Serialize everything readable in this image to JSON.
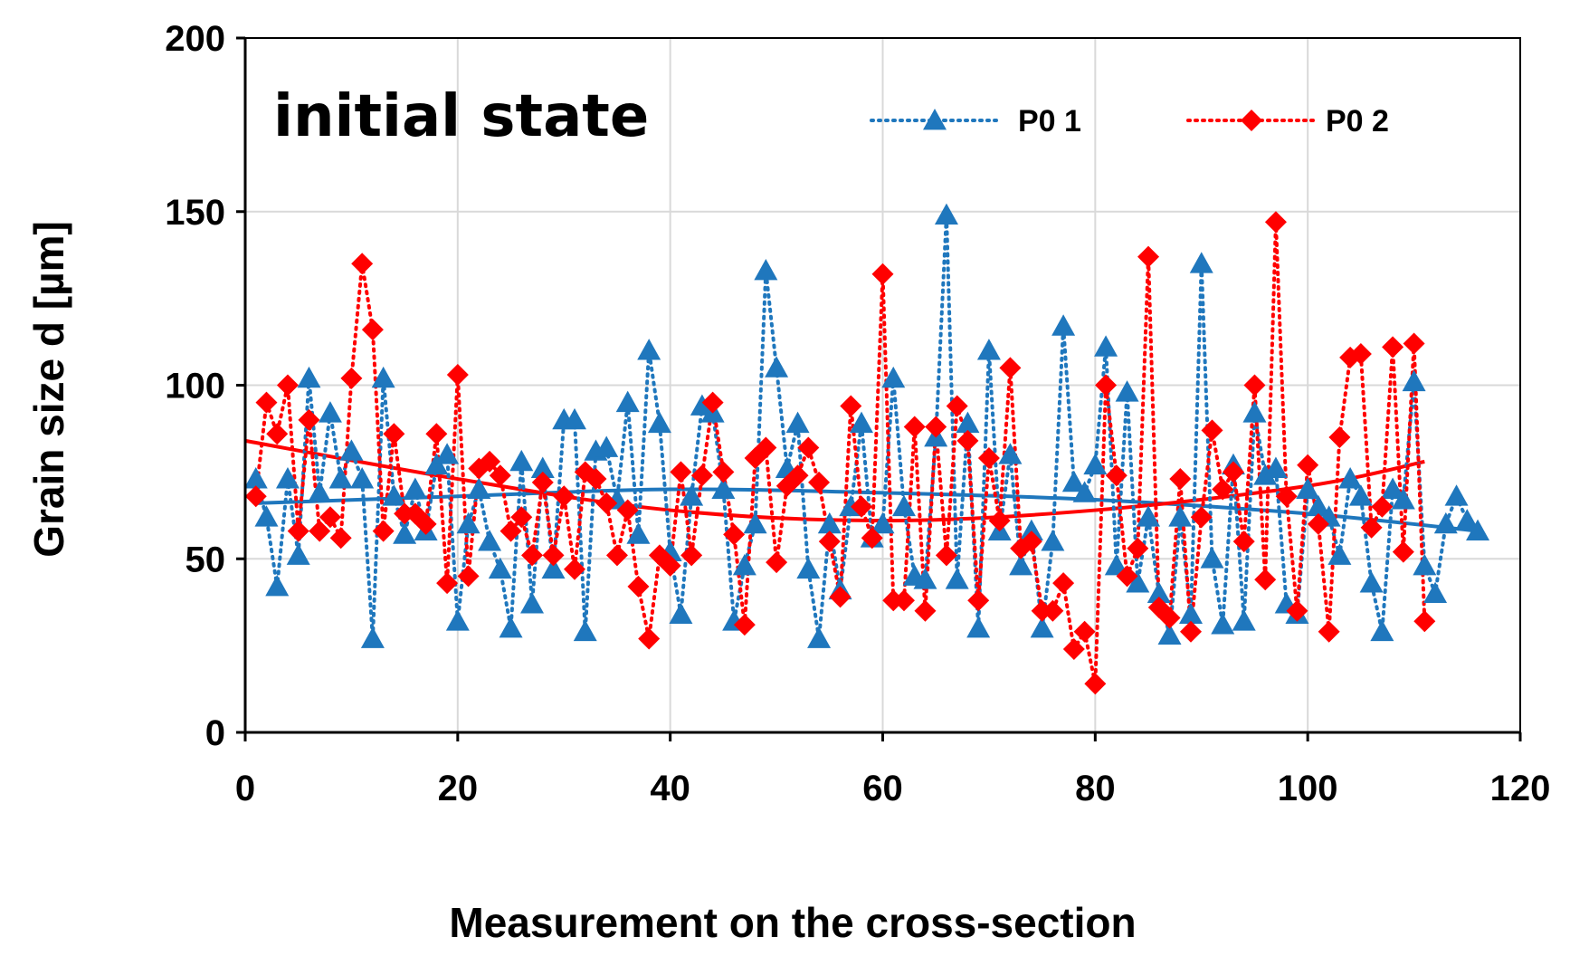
{
  "chart_data": {
    "type": "line",
    "title": "",
    "annotation": "initial state",
    "xlabel": "Measurement on the cross-section",
    "ylabel": "Grain  size d [µm]",
    "xlim": [
      0,
      120
    ],
    "ylim": [
      0,
      200
    ],
    "xticks": [
      0,
      20,
      40,
      60,
      80,
      100,
      120
    ],
    "yticks": [
      0,
      50,
      100,
      150,
      200
    ],
    "grid": true,
    "legend_position": "top-right",
    "series": [
      {
        "name": "P0 1",
        "marker": "triangle",
        "line_style": "dotted",
        "color": "#1f77bd",
        "x": [
          1,
          2,
          3,
          4,
          5,
          6,
          7,
          8,
          9,
          10,
          11,
          12,
          13,
          14,
          15,
          16,
          17,
          18,
          19,
          20,
          21,
          22,
          23,
          24,
          25,
          26,
          27,
          28,
          29,
          30,
          31,
          32,
          33,
          34,
          35,
          36,
          37,
          38,
          39,
          40,
          41,
          42,
          43,
          44,
          45,
          46,
          47,
          48,
          49,
          50,
          51,
          52,
          53,
          54,
          55,
          56,
          57,
          58,
          59,
          60,
          61,
          62,
          63,
          64,
          65,
          66,
          67,
          68,
          69,
          70,
          71,
          72,
          73,
          74,
          75,
          76,
          77,
          78,
          79,
          80,
          81,
          82,
          83,
          84,
          85,
          86,
          87,
          88,
          89,
          90,
          91,
          92,
          93,
          94,
          95,
          96,
          97,
          98,
          99,
          100,
          101,
          102,
          103,
          104,
          105,
          106,
          107,
          108,
          109,
          110,
          111,
          112,
          113,
          114,
          115,
          116
        ],
        "values": [
          73,
          62,
          42,
          73,
          51,
          102,
          69,
          92,
          73,
          81,
          73,
          27,
          102,
          68,
          57,
          70,
          58,
          77,
          80,
          32,
          60,
          70,
          55,
          47,
          30,
          78,
          37,
          76,
          47,
          90,
          90,
          29,
          81,
          82,
          67,
          95,
          57,
          110,
          89,
          52,
          34,
          68,
          94,
          92,
          70,
          32,
          48,
          60,
          133,
          105,
          76,
          89,
          47,
          27,
          60,
          41,
          65,
          89,
          56,
          60,
          102,
          65,
          45,
          44,
          85,
          149,
          44,
          89,
          30,
          110,
          58,
          80,
          48,
          58,
          30,
          55,
          117,
          72,
          69,
          77,
          111,
          48,
          98,
          43,
          62,
          40,
          28,
          62,
          34,
          135,
          50,
          31,
          77,
          32,
          92,
          74,
          76,
          37,
          34,
          70,
          65,
          62,
          51,
          73,
          68,
          43,
          29,
          70,
          67,
          101,
          48,
          40,
          60,
          68,
          61,
          58
        ],
        "trendline": {
          "type": "polynomial",
          "x": [
            1,
            20,
            40,
            60,
            80,
            100,
            116
          ],
          "values": [
            66,
            68,
            70,
            69,
            67,
            63,
            58
          ]
        }
      },
      {
        "name": "P0 2",
        "marker": "diamond",
        "line_style": "dotted",
        "color": "#ff0000",
        "x": [
          1,
          2,
          3,
          4,
          5,
          6,
          7,
          8,
          9,
          10,
          11,
          12,
          13,
          14,
          15,
          16,
          17,
          18,
          19,
          20,
          21,
          22,
          23,
          24,
          25,
          26,
          27,
          28,
          29,
          30,
          31,
          32,
          33,
          34,
          35,
          36,
          37,
          38,
          39,
          40,
          41,
          42,
          43,
          44,
          45,
          46,
          47,
          48,
          49,
          50,
          51,
          52,
          53,
          54,
          55,
          56,
          57,
          58,
          59,
          60,
          61,
          62,
          63,
          64,
          65,
          66,
          67,
          68,
          69,
          70,
          71,
          72,
          73,
          74,
          75,
          76,
          77,
          78,
          79,
          80,
          81,
          82,
          83,
          84,
          85,
          86,
          87,
          88,
          89,
          90,
          91,
          92,
          93,
          94,
          95,
          96,
          97,
          98,
          99,
          100,
          101,
          102,
          103,
          104,
          105,
          106,
          107,
          108,
          109,
          110,
          111
        ],
        "values": [
          68,
          95,
          86,
          100,
          58,
          90,
          58,
          62,
          56,
          102,
          135,
          116,
          58,
          86,
          63,
          63,
          60,
          86,
          43,
          103,
          45,
          76,
          78,
          74,
          58,
          62,
          51,
          72,
          51,
          68,
          47,
          75,
          73,
          66,
          51,
          64,
          42,
          27,
          51,
          48,
          75,
          51,
          74,
          95,
          75,
          57,
          31,
          79,
          82,
          49,
          71,
          74,
          82,
          72,
          55,
          39,
          94,
          65,
          56,
          132,
          38,
          38,
          88,
          35,
          88,
          51,
          94,
          84,
          38,
          79,
          61,
          105,
          53,
          55,
          35,
          35,
          43,
          24,
          29,
          14,
          100,
          74,
          45,
          53,
          137,
          36,
          33,
          73,
          29,
          62,
          87,
          70,
          75,
          55,
          100,
          44,
          147,
          68,
          35,
          77,
          60,
          29,
          85,
          108,
          109,
          59,
          65,
          111,
          52,
          112,
          32
        ],
        "trendline": {
          "type": "polynomial",
          "x": [
            0,
            20,
            40,
            60,
            80,
            100,
            111
          ],
          "values": [
            84,
            73,
            64,
            61,
            64,
            71,
            78
          ]
        }
      }
    ]
  }
}
